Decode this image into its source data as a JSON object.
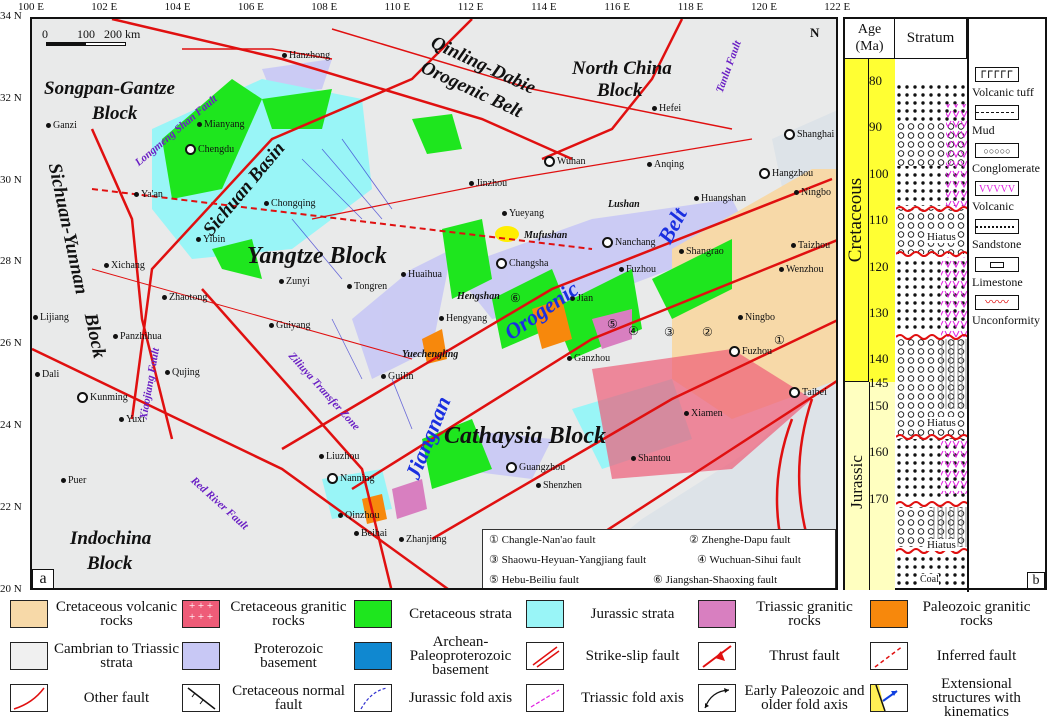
{
  "map": {
    "panel_label": "a",
    "lon_ticks": [
      "100 E",
      "102 E",
      "104 E",
      "106 E",
      "108 E",
      "110 E",
      "112 E",
      "114 E",
      "116 E",
      "118 E",
      "120 E",
      "122 E"
    ],
    "lat_ticks": [
      "34 N",
      "32 N",
      "30 N",
      "28 N",
      "26 N",
      "24 N",
      "22 N",
      "20 N"
    ],
    "scale_bar": {
      "zero": "0",
      "mid": "100",
      "end": "200 km"
    },
    "north_arrow": "N",
    "blocks": [
      "Songpan-Gantze",
      "Block",
      "Qinling-Dabie",
      "Orogenic Belt",
      "North China",
      "Block",
      "Sichuan Basin",
      "Yangtze Block",
      "Sichuan-Yunnan",
      "Block",
      "Indochina",
      "Block",
      "Cathaysia Block"
    ],
    "orogen": [
      "Jiangnan",
      "Orogenic",
      "Belt"
    ],
    "faults": [
      "Longmeng Shan Fault",
      "Tanlu Fault",
      "Xiaojiang Fault",
      "Ziliuya Transfer Zone",
      "Red River Fault"
    ],
    "localities": [
      "Mufushan",
      "Lushan",
      "Hengshan",
      "Yuechengling"
    ],
    "cities": [
      "Hanzhong",
      "Mianyang",
      "Chengdu",
      "Ya'an",
      "Chongqing",
      "Yibin",
      "Xichang",
      "Zhaotong",
      "Zunyi",
      "Tongren",
      "Huaihua",
      "Guiyang",
      "Qujing",
      "Kunming",
      "Yuxi",
      "Dali",
      "Lijiang",
      "Panzhihua",
      "Puer",
      "Ganzi",
      "Nanning",
      "Qinzhou",
      "Beihai",
      "Zhanjiang",
      "Guilin",
      "Liuzhou",
      "Hengyang",
      "Changsha",
      "Yueyang",
      "Jinzhou",
      "Wuhan",
      "Hefei",
      "Anqing",
      "Hangzhou",
      "Shanghai",
      "Huangshan",
      "Nanchang",
      "Shangrao",
      "Fuzhou",
      "Jian",
      "Ganzhou",
      "Ningbo",
      "Fuzhou",
      "Wenzhou",
      "Taizhou",
      "Ningbo",
      "Xiamen",
      "Shantou",
      "Guangzhou",
      "Shenzhen",
      "Taibei"
    ],
    "fault_numbers": [
      "①",
      "②",
      "③",
      "④",
      "⑤",
      "⑥"
    ],
    "fault_legend": [
      "① Changle-Nan'ao fault",
      "② Zhenghe-Dapu fault",
      "③ Shaowu-Heyuan-Yangjiang fault",
      "④ Wuchuan-Sihui fault",
      "⑤ Hebu-Beiliu fault",
      "⑥ Jiangshan-Shaoxing fault"
    ]
  },
  "column": {
    "panel_label": "b",
    "header_age": "Age (Ma)",
    "header_stratum": "Stratum",
    "periods": [
      {
        "name": "Cretaceous",
        "color": "#ffff33"
      },
      {
        "name": "Jurassic",
        "color": "#ffffc0"
      }
    ],
    "ages": [
      "80",
      "90",
      "100",
      "110",
      "120",
      "130",
      "140",
      "145",
      "150",
      "160",
      "170"
    ],
    "hiatus": "Hiatus",
    "coal": "Coal",
    "lithology_legend": [
      "Volcanic tuff",
      "Mud",
      "Conglomerate",
      "Volcanic",
      "Sandstone",
      "Limestone",
      "Unconformity"
    ]
  },
  "legend": [
    {
      "label": "Cretaceous volcanic rocks",
      "color": "#f7d9a8"
    },
    {
      "label": "Cretaceous granitic rocks",
      "color": "#ee5c78"
    },
    {
      "label": "Cretaceous strata",
      "color": "#1ee61e"
    },
    {
      "label": "Jurassic strata",
      "color": "#99f5f7"
    },
    {
      "label": "Triassic granitic rocks",
      "color": "#d87fc0"
    },
    {
      "label": "Paleozoic granitic rocks",
      "color": "#f7880c"
    },
    {
      "label": "Cambrian to Triassic strata",
      "color": "#f0f0f0"
    },
    {
      "label": "Proterozoic basement",
      "color": "#c8c8f5"
    },
    {
      "label": "Archean-Paleoproterozoic basement",
      "color": "#1088d0"
    },
    {
      "label": "Strike-slip fault",
      "color": "#e01010"
    },
    {
      "label": "Thrust fault",
      "color": "#e01010"
    },
    {
      "label": "Inferred fault",
      "color": "#e01010"
    },
    {
      "label": "Other fault",
      "color": "#e01010"
    },
    {
      "label": "Cretaceous normal fault",
      "color": "#111111"
    },
    {
      "label": "Jurassic fold axis",
      "color": "#3030d0"
    },
    {
      "label": "Triassic fold axis",
      "color": "#e020e0"
    },
    {
      "label": "Early Paleozoic and older fold axis",
      "color": "#111111"
    },
    {
      "label": "Extensional structures with kinematics",
      "color": "#1040e0"
    }
  ]
}
